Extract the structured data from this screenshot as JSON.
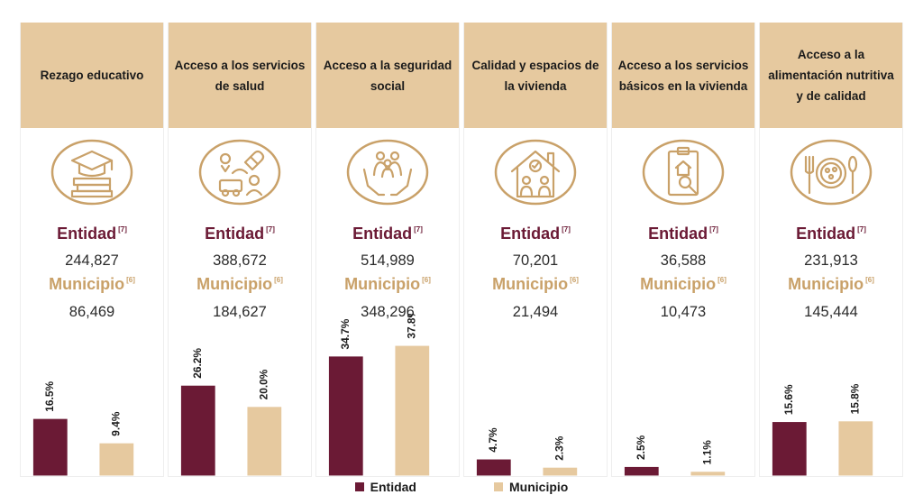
{
  "labels": {
    "entity": "Entidad",
    "municipality": "Municipio",
    "entity_ref": "[7]",
    "municipality_ref": "[6]"
  },
  "colors": {
    "entity": "#6b1a35",
    "municipality": "#e6c99f",
    "header": "#e6c99f"
  },
  "legend": {
    "entity": "Entidad",
    "municipality": "Municipio"
  },
  "columns": [
    {
      "header": "Rezago educativo",
      "icon": "education-icon",
      "entity_value": "244,827",
      "municipality_value": "86,469"
    },
    {
      "header": "Acceso a los servicios de salud",
      "icon": "health-services-icon",
      "entity_value": "388,672",
      "municipality_value": "184,627"
    },
    {
      "header": "Acceso a la seguridad social",
      "icon": "social-security-icon",
      "entity_value": "514,989",
      "municipality_value": "348,296"
    },
    {
      "header": "Calidad y espacios de la vivienda",
      "icon": "housing-icon",
      "entity_value": "70,201",
      "municipality_value": "21,494"
    },
    {
      "header": "Acceso a los servicios básicos en la vivienda",
      "icon": "basic-services-icon",
      "entity_value": "36,588",
      "municipality_value": "10,473"
    },
    {
      "header": "Acceso a la alimentación nutritiva y de calidad",
      "icon": "food-icon",
      "entity_value": "231,913",
      "municipality_value": "145,444"
    }
  ],
  "chart_data": {
    "type": "bar",
    "categories": [
      "Rezago educativo",
      "Acceso a los servicios de salud",
      "Acceso a la seguridad social",
      "Calidad y espacios de la vivienda",
      "Acceso a los servicios básicos en la vivienda",
      "Acceso a la alimentación nutritiva y de calidad"
    ],
    "series": [
      {
        "name": "Entidad",
        "values": [
          16.5,
          26.2,
          34.7,
          4.7,
          2.5,
          15.6
        ],
        "labels": [
          "16.5%",
          "26.2%",
          "34.7%",
          "4.7%",
          "2.5%",
          "15.6%"
        ]
      },
      {
        "name": "Municipio",
        "values": [
          9.4,
          20.0,
          37.8,
          2.3,
          1.1,
          15.8
        ],
        "labels": [
          "9.4%",
          "20.0%",
          "37.8%",
          "2.3%",
          "1.1%",
          "15.8%"
        ]
      }
    ],
    "ylim": [
      0,
      47
    ],
    "legend_position": "bottom-center",
    "grid": false
  }
}
